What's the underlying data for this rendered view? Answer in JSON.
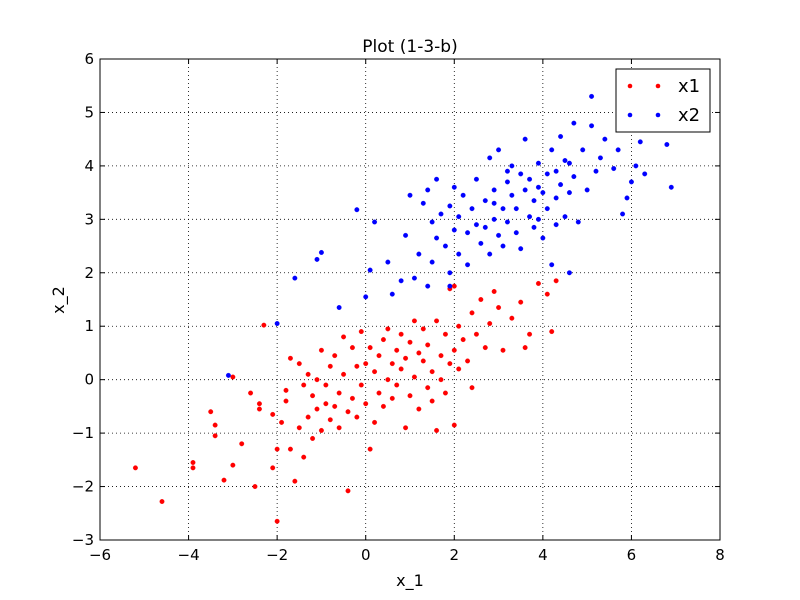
{
  "chart_data": {
    "type": "scatter",
    "title": "Plot (1-3-b)",
    "xlabel": "x_1",
    "ylabel": "x_2",
    "xlim": [
      -6,
      8
    ],
    "ylim": [
      -3,
      6
    ],
    "x_ticks": [
      -6,
      -4,
      -2,
      0,
      2,
      4,
      6,
      8
    ],
    "y_ticks": [
      -3,
      -2,
      -1,
      0,
      1,
      2,
      3,
      4,
      5,
      6
    ],
    "x_tick_labels": [
      "−6",
      "−4",
      "−2",
      "0",
      "2",
      "4",
      "6",
      "8"
    ],
    "y_tick_labels": [
      "−3",
      "−2",
      "−1",
      "0",
      "1",
      "2",
      "3",
      "4",
      "5",
      "6"
    ],
    "grid": true,
    "legend_position": "top-right",
    "series": [
      {
        "name": "x1",
        "color": "#ff0000",
        "points": [
          [
            -5.2,
            -1.65
          ],
          [
            -4.6,
            -2.28
          ],
          [
            -3.9,
            -1.55
          ],
          [
            -3.9,
            -1.65
          ],
          [
            -3.5,
            -0.6
          ],
          [
            -3.4,
            -0.85
          ],
          [
            -3.4,
            -1.05
          ],
          [
            -3.2,
            -1.88
          ],
          [
            -3.0,
            -1.6
          ],
          [
            -3.0,
            0.05
          ],
          [
            -2.8,
            -1.2
          ],
          [
            -2.6,
            -0.25
          ],
          [
            -2.5,
            -2.0
          ],
          [
            -2.4,
            -0.45
          ],
          [
            -2.4,
            -0.55
          ],
          [
            -2.3,
            1.02
          ],
          [
            -2.1,
            -0.65
          ],
          [
            -2.1,
            -1.65
          ],
          [
            -2.0,
            -2.65
          ],
          [
            -2.0,
            -1.3
          ],
          [
            -1.9,
            -0.8
          ],
          [
            -1.8,
            -0.2
          ],
          [
            -1.8,
            -0.4
          ],
          [
            -1.7,
            0.4
          ],
          [
            -1.7,
            -1.3
          ],
          [
            -1.6,
            -1.9
          ],
          [
            -1.5,
            -0.9
          ],
          [
            -1.5,
            0.3
          ],
          [
            -1.4,
            -0.1
          ],
          [
            -1.4,
            -1.45
          ],
          [
            -1.3,
            -0.7
          ],
          [
            -1.3,
            0.1
          ],
          [
            -1.2,
            -0.3
          ],
          [
            -1.2,
            -1.1
          ],
          [
            -1.1,
            -0.55
          ],
          [
            -1.1,
            0.0
          ],
          [
            -1.0,
            0.55
          ],
          [
            -1.0,
            -0.95
          ],
          [
            -0.9,
            -0.45
          ],
          [
            -0.9,
            -0.1
          ],
          [
            -0.8,
            0.25
          ],
          [
            -0.8,
            -0.75
          ],
          [
            -0.7,
            0.45
          ],
          [
            -0.7,
            -0.5
          ],
          [
            -0.6,
            -0.25
          ],
          [
            -0.6,
            -0.9
          ],
          [
            -0.5,
            0.1
          ],
          [
            -0.5,
            0.8
          ],
          [
            -0.4,
            -0.6
          ],
          [
            -0.4,
            -2.08
          ],
          [
            -0.3,
            0.6
          ],
          [
            -0.3,
            -0.35
          ],
          [
            -0.2,
            0.25
          ],
          [
            -0.2,
            -0.7
          ],
          [
            -0.1,
            0.9
          ],
          [
            -0.1,
            -0.1
          ],
          [
            0.0,
            0.3
          ],
          [
            0.0,
            -0.45
          ],
          [
            0.1,
            0.6
          ],
          [
            0.1,
            -1.3
          ],
          [
            0.2,
            0.15
          ],
          [
            0.2,
            -0.8
          ],
          [
            0.3,
            0.45
          ],
          [
            0.3,
            -0.25
          ],
          [
            0.4,
            0.75
          ],
          [
            0.4,
            -0.5
          ],
          [
            0.5,
            0.0
          ],
          [
            0.5,
            0.95
          ],
          [
            0.6,
            0.3
          ],
          [
            0.6,
            -0.35
          ],
          [
            0.7,
            0.55
          ],
          [
            0.7,
            -0.1
          ],
          [
            0.8,
            0.2
          ],
          [
            0.8,
            0.85
          ],
          [
            0.9,
            -0.9
          ],
          [
            0.9,
            0.4
          ],
          [
            1.0,
            0.7
          ],
          [
            1.0,
            -0.3
          ],
          [
            1.1,
            0.05
          ],
          [
            1.1,
            1.1
          ],
          [
            1.2,
            0.5
          ],
          [
            1.2,
            -0.55
          ],
          [
            1.3,
            0.35
          ],
          [
            1.3,
            0.95
          ],
          [
            1.4,
            -0.15
          ],
          [
            1.4,
            0.65
          ],
          [
            1.5,
            0.15
          ],
          [
            1.5,
            -0.4
          ],
          [
            1.6,
            1.1
          ],
          [
            1.6,
            -0.95
          ],
          [
            1.7,
            0.45
          ],
          [
            1.7,
            0.0
          ],
          [
            1.8,
            0.85
          ],
          [
            1.8,
            -0.25
          ],
          [
            1.9,
            1.7
          ],
          [
            1.9,
            0.3
          ],
          [
            2.0,
            0.55
          ],
          [
            2.0,
            -0.85
          ],
          [
            2.1,
            1.0
          ],
          [
            2.1,
            0.2
          ],
          [
            2.2,
            0.75
          ],
          [
            2.3,
            0.35
          ],
          [
            2.4,
            1.25
          ],
          [
            2.4,
            -0.15
          ],
          [
            2.5,
            0.85
          ],
          [
            2.6,
            1.5
          ],
          [
            2.7,
            0.6
          ],
          [
            2.8,
            1.05
          ],
          [
            2.9,
            1.65
          ],
          [
            3.0,
            1.35
          ],
          [
            3.1,
            0.55
          ],
          [
            3.3,
            1.15
          ],
          [
            3.5,
            1.45
          ],
          [
            3.7,
            0.85
          ],
          [
            3.9,
            1.8
          ],
          [
            4.1,
            1.6
          ],
          [
            4.3,
            1.85
          ],
          [
            4.2,
            0.9
          ],
          [
            3.6,
            0.6
          ],
          [
            2.0,
            1.75
          ]
        ]
      },
      {
        "name": "x2",
        "color": "#0000ff",
        "points": [
          [
            -3.1,
            0.08
          ],
          [
            -2.0,
            1.05
          ],
          [
            -1.6,
            1.9
          ],
          [
            -1.1,
            2.25
          ],
          [
            -1.0,
            2.38
          ],
          [
            -0.6,
            1.35
          ],
          [
            -0.2,
            3.18
          ],
          [
            0.0,
            1.55
          ],
          [
            0.1,
            2.05
          ],
          [
            0.2,
            2.95
          ],
          [
            0.5,
            2.2
          ],
          [
            0.6,
            1.6
          ],
          [
            0.8,
            1.85
          ],
          [
            0.9,
            2.7
          ],
          [
            1.0,
            3.45
          ],
          [
            1.1,
            1.9
          ],
          [
            1.2,
            2.35
          ],
          [
            1.3,
            3.3
          ],
          [
            1.4,
            3.55
          ],
          [
            1.4,
            1.75
          ],
          [
            1.5,
            2.95
          ],
          [
            1.5,
            2.2
          ],
          [
            1.6,
            3.75
          ],
          [
            1.6,
            2.65
          ],
          [
            1.7,
            3.1
          ],
          [
            1.8,
            2.5
          ],
          [
            1.9,
            3.25
          ],
          [
            1.9,
            2.0
          ],
          [
            2.0,
            3.6
          ],
          [
            2.0,
            2.8
          ],
          [
            2.1,
            3.05
          ],
          [
            2.1,
            2.35
          ],
          [
            2.2,
            3.45
          ],
          [
            2.3,
            2.75
          ],
          [
            2.3,
            2.15
          ],
          [
            2.4,
            3.2
          ],
          [
            2.5,
            2.9
          ],
          [
            2.5,
            3.75
          ],
          [
            2.6,
            2.55
          ],
          [
            2.7,
            3.35
          ],
          [
            2.7,
            2.85
          ],
          [
            2.8,
            4.15
          ],
          [
            2.8,
            2.35
          ],
          [
            2.9,
            3.0
          ],
          [
            2.9,
            3.55
          ],
          [
            3.0,
            2.7
          ],
          [
            3.0,
            4.3
          ],
          [
            3.1,
            3.2
          ],
          [
            3.1,
            2.5
          ],
          [
            3.2,
            3.7
          ],
          [
            3.2,
            2.95
          ],
          [
            3.3,
            3.45
          ],
          [
            3.3,
            4.0
          ],
          [
            3.4,
            2.75
          ],
          [
            3.4,
            3.2
          ],
          [
            3.5,
            3.85
          ],
          [
            3.5,
            2.45
          ],
          [
            3.6,
            3.55
          ],
          [
            3.6,
            4.5
          ],
          [
            3.7,
            3.05
          ],
          [
            3.7,
            3.75
          ],
          [
            3.8,
            2.85
          ],
          [
            3.8,
            3.35
          ],
          [
            3.9,
            4.05
          ],
          [
            3.9,
            3.0
          ],
          [
            4.0,
            3.5
          ],
          [
            4.0,
            2.65
          ],
          [
            4.1,
            3.85
          ],
          [
            4.1,
            3.2
          ],
          [
            4.2,
            4.3
          ],
          [
            4.2,
            2.15
          ],
          [
            4.3,
            3.4
          ],
          [
            4.3,
            2.9
          ],
          [
            4.4,
            4.55
          ],
          [
            4.4,
            3.65
          ],
          [
            4.5,
            3.05
          ],
          [
            4.5,
            4.1
          ],
          [
            4.6,
            2.0
          ],
          [
            4.6,
            3.5
          ],
          [
            4.7,
            4.8
          ],
          [
            4.7,
            3.8
          ],
          [
            4.8,
            2.95
          ],
          [
            4.9,
            4.3
          ],
          [
            5.0,
            3.55
          ],
          [
            5.1,
            5.3
          ],
          [
            5.1,
            4.75
          ],
          [
            5.2,
            3.9
          ],
          [
            5.3,
            4.15
          ],
          [
            5.4,
            4.5
          ],
          [
            5.6,
            3.95
          ],
          [
            5.7,
            4.3
          ],
          [
            5.8,
            3.1
          ],
          [
            5.9,
            3.4
          ],
          [
            6.0,
            3.7
          ],
          [
            6.1,
            4.0
          ],
          [
            6.2,
            4.45
          ],
          [
            6.3,
            3.85
          ],
          [
            6.8,
            4.4
          ],
          [
            6.9,
            3.6
          ],
          [
            4.3,
            3.9
          ],
          [
            3.2,
            3.9
          ],
          [
            3.9,
            3.6
          ],
          [
            2.9,
            3.3
          ],
          [
            4.6,
            4.05
          ],
          [
            1.9,
            1.75
          ]
        ]
      }
    ]
  }
}
